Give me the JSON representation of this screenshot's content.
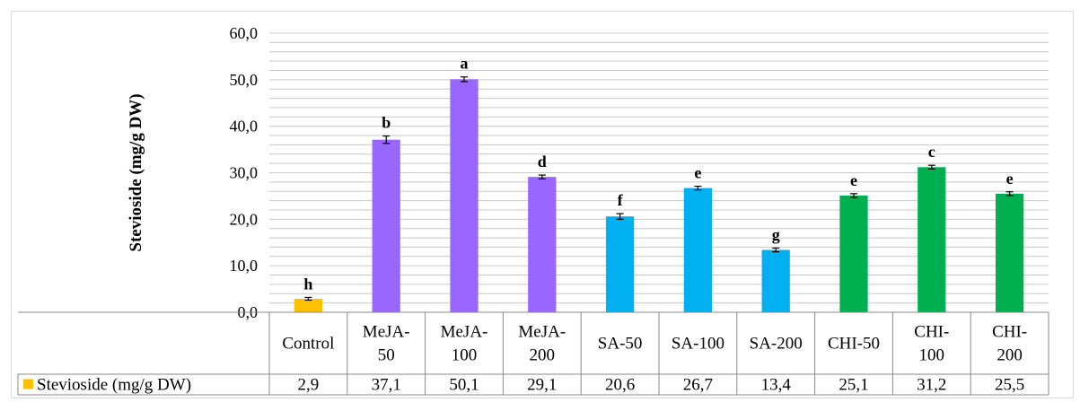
{
  "chart_data": {
    "type": "bar",
    "ylabel": "Stevioside (mg/g DW)",
    "ylim": [
      0,
      60
    ],
    "y_tick_labels": [
      "0,0",
      "10,0",
      "20,0",
      "30,0",
      "40,0",
      "50,0",
      "60,0"
    ],
    "gridlines": "horizontal, minor every 2",
    "categories": [
      [
        "Control"
      ],
      [
        "MeJA-",
        "50"
      ],
      [
        "MeJA-",
        "100"
      ],
      [
        "MeJA-",
        "200"
      ],
      [
        "SA-50"
      ],
      [
        "SA-100"
      ],
      [
        "SA-200"
      ],
      [
        "CHI-50"
      ],
      [
        "CHI-",
        "100"
      ],
      [
        "CHI-",
        "200"
      ]
    ],
    "series": [
      {
        "name": "Stevioside (mg/g DW)",
        "legend_color": "#ffc000",
        "values": [
          2.9,
          37.1,
          50.1,
          29.1,
          20.6,
          26.7,
          13.4,
          25.1,
          31.2,
          25.5
        ],
        "value_labels": [
          "2,9",
          "37,1",
          "50,1",
          "29,1",
          "20,6",
          "26,7",
          "13,4",
          "25,1",
          "31,2",
          "25,5"
        ],
        "errors": [
          0.3,
          0.8,
          0.5,
          0.4,
          0.6,
          0.4,
          0.4,
          0.4,
          0.4,
          0.4
        ],
        "letters": [
          "h",
          "b",
          "a",
          "d",
          "f",
          "e",
          "g",
          "e",
          "c",
          "e"
        ],
        "bar_colors": [
          "#ffc000",
          "#9966ff",
          "#9966ff",
          "#9966ff",
          "#00b0f0",
          "#00b0f0",
          "#00b0f0",
          "#00b050",
          "#00b050",
          "#00b050"
        ]
      }
    ],
    "legend_placement": "data table row"
  }
}
